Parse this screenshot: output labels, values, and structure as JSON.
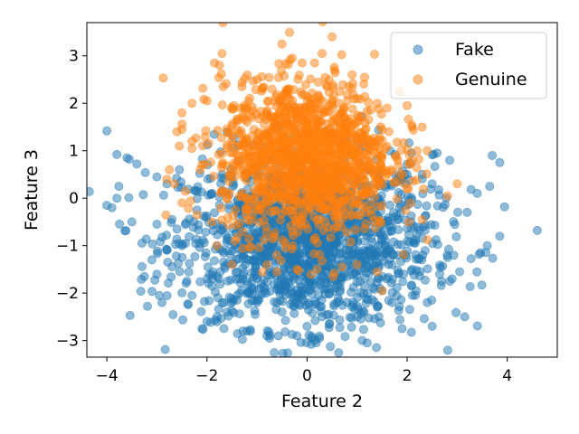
{
  "chart_data": {
    "type": "scatter",
    "title": "",
    "xlabel": "Feature 2",
    "ylabel": "Feature 3",
    "xlim": [
      -4.4,
      5.0
    ],
    "ylim": [
      -3.35,
      3.7
    ],
    "xticks": [
      -4,
      -2,
      0,
      2,
      4
    ],
    "yticks": [
      -3,
      -2,
      -1,
      0,
      1,
      2,
      3
    ],
    "grid": false,
    "legend_position": "top-right",
    "point_alpha": 0.5,
    "series": [
      {
        "name": "Fake",
        "color": "#1f77b4",
        "distribution": {
          "mean_x": 0.0,
          "std_x": 1.25,
          "mean_y": -0.9,
          "std_y": 0.9,
          "count": 1600
        },
        "points": [
          [
            -4.0,
            1.42
          ],
          [
            -3.8,
            0.92
          ],
          [
            -3.55,
            0.82
          ],
          [
            -3.4,
            0.72
          ],
          [
            -3.9,
            -0.2
          ],
          [
            -3.8,
            0.0
          ],
          [
            -3.5,
            -0.5
          ],
          [
            -3.3,
            -0.95
          ],
          [
            -3.25,
            -1.65
          ],
          [
            -3.1,
            -1.3
          ],
          [
            -3.0,
            0.45
          ],
          [
            -3.0,
            -0.55
          ],
          [
            -2.95,
            -2.05
          ],
          [
            -2.9,
            -2.2
          ],
          [
            -2.8,
            0.3
          ],
          [
            -2.7,
            -0.45
          ],
          [
            -2.6,
            -0.65
          ],
          [
            -2.55,
            0.6
          ],
          [
            -2.4,
            -1.75
          ],
          [
            -2.3,
            -2.05
          ],
          [
            -2.1,
            -2.75
          ],
          [
            -2.0,
            -2.6
          ],
          [
            -1.8,
            -2.5
          ],
          [
            -1.6,
            -2.4
          ],
          [
            -0.8,
            -2.9
          ],
          [
            -0.75,
            -2.95
          ],
          [
            -0.2,
            -2.9
          ],
          [
            0.0,
            -2.7
          ],
          [
            0.1,
            -2.95
          ],
          [
            0.25,
            -2.95
          ],
          [
            1.1,
            -3.0
          ],
          [
            1.2,
            -3.05
          ],
          [
            1.9,
            -2.75
          ],
          [
            2.5,
            -2.7
          ],
          [
            3.15,
            -2.5
          ],
          [
            3.6,
            -1.0
          ],
          [
            3.85,
            -0.8
          ],
          [
            3.65,
            0.25
          ],
          [
            3.7,
            0.9
          ],
          [
            3.85,
            0.75
          ],
          [
            4.6,
            -0.68
          ],
          [
            3.4,
            0.1
          ],
          [
            3.2,
            -0.3
          ],
          [
            2.85,
            0.8
          ],
          [
            2.6,
            0.95
          ],
          [
            2.3,
            0.5
          ],
          [
            2.1,
            -1.5
          ],
          [
            2.65,
            -1.6
          ],
          [
            2.9,
            -1.7
          ],
          [
            3.05,
            -1.55
          ],
          [
            1.5,
            -1.95
          ],
          [
            1.7,
            -2.2
          ],
          [
            -1.4,
            -2.15
          ],
          [
            -1.9,
            -1.85
          ],
          [
            -2.2,
            -0.25
          ],
          [
            -2.5,
            -1.0
          ],
          [
            -1.6,
            1.4
          ],
          [
            -1.7,
            0.5
          ],
          [
            -1.9,
            0.1
          ],
          [
            1.9,
            0.4
          ],
          [
            2.5,
            0.3
          ],
          [
            -3.6,
            0.85
          ],
          [
            -4.0,
            -0.15
          ],
          [
            -3.0,
            -1.6
          ],
          [
            -2.8,
            -1.1
          ],
          [
            2.4,
            -2.2
          ],
          [
            1.0,
            -2.5
          ],
          [
            0.3,
            -2.5
          ],
          [
            -0.5,
            -2.4
          ],
          [
            -1.0,
            -2.2
          ],
          [
            -0.2,
            -2.1
          ],
          [
            0.6,
            -2.2
          ],
          [
            2.8,
            -1.2
          ]
        ]
      },
      {
        "name": "Genuine",
        "color": "#ff7f0e",
        "distribution": {
          "mean_x": 0.0,
          "std_x": 0.85,
          "mean_y": 0.85,
          "std_y": 0.8,
          "count": 1400
        },
        "points": [
          [
            0.5,
            3.4
          ],
          [
            -0.5,
            3.25
          ],
          [
            -1.7,
            3.05
          ],
          [
            -1.75,
            2.8
          ],
          [
            0.3,
            3.05
          ],
          [
            0.15,
            2.85
          ],
          [
            -0.1,
            2.85
          ],
          [
            0.55,
            2.7
          ],
          [
            0.9,
            2.6
          ],
          [
            1.15,
            2.55
          ],
          [
            -1.85,
            2.85
          ],
          [
            -2.3,
            2.0
          ],
          [
            -2.5,
            1.8
          ],
          [
            -2.5,
            1.45
          ],
          [
            -2.6,
            1.4
          ],
          [
            -2.3,
            1.2
          ],
          [
            -2.55,
            1.1
          ],
          [
            -2.75,
            0.6
          ],
          [
            -2.8,
            0.4
          ],
          [
            -2.65,
            0.3
          ],
          [
            -2.5,
            -0.1
          ],
          [
            -2.2,
            -0.35
          ],
          [
            -1.9,
            -0.5
          ],
          [
            -1.8,
            -1.0
          ],
          [
            -1.5,
            -1.4
          ],
          [
            -0.8,
            -1.4
          ],
          [
            -0.6,
            -1.55
          ],
          [
            -0.2,
            -1.5
          ],
          [
            0.2,
            -1.5
          ],
          [
            0.7,
            -1.45
          ],
          [
            1.0,
            -1.4
          ],
          [
            1.4,
            -1.55
          ],
          [
            1.5,
            -1.95
          ],
          [
            2.3,
            -0.45
          ],
          [
            2.0,
            0.2
          ],
          [
            2.05,
            0.75
          ],
          [
            2.2,
            1.0
          ],
          [
            2.4,
            1.0
          ],
          [
            2.3,
            1.5
          ],
          [
            2.0,
            1.95
          ],
          [
            1.85,
            2.25
          ],
          [
            3.0,
            0.3
          ],
          [
            1.6,
            1.9
          ],
          [
            -1.3,
            2.35
          ],
          [
            -1.0,
            2.5
          ],
          [
            1.0,
            2.1
          ],
          [
            -2.1,
            0.7
          ],
          [
            -2.3,
            1.05
          ],
          [
            -2.0,
            2.05
          ],
          [
            2.1,
            1.5
          ],
          [
            -1.2,
            1.9
          ],
          [
            0.4,
            2.35
          ],
          [
            1.4,
            2.0
          ],
          [
            -0.7,
            2.3
          ]
        ]
      }
    ]
  }
}
